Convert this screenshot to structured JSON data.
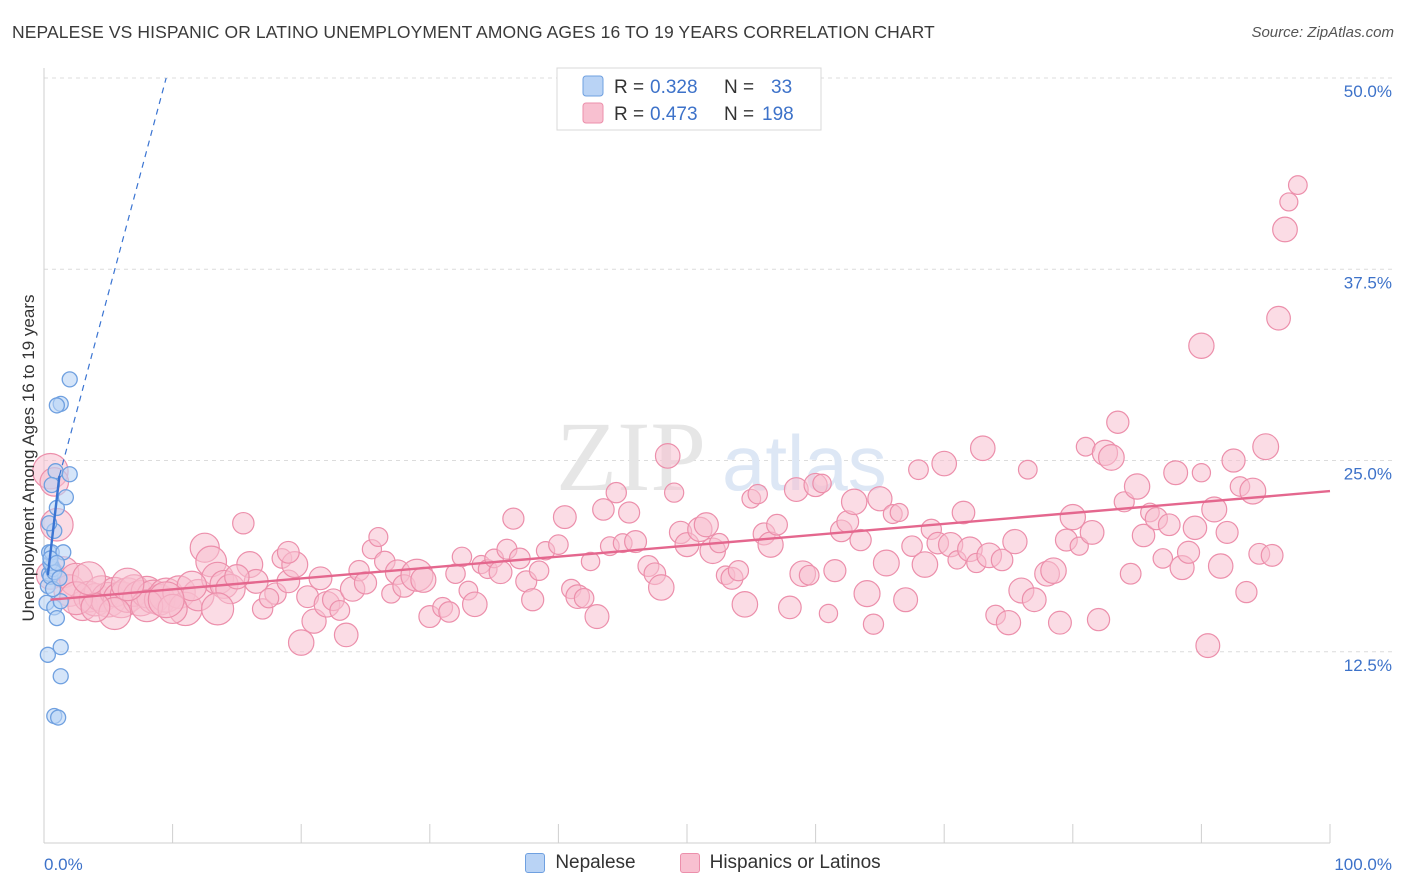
{
  "title": "NEPALESE VS HISPANIC OR LATINO UNEMPLOYMENT AMONG AGES 16 TO 19 YEARS CORRELATION CHART",
  "source": "Source: ZipAtlas.com",
  "watermark": {
    "zip": "ZIP",
    "atlas": "atlas"
  },
  "chart_data": {
    "type": "scatter",
    "xlabel": "",
    "ylabel": "Unemployment Among Ages 16 to 19 years",
    "xlim": [
      0,
      100
    ],
    "ylim": [
      0,
      52
    ],
    "x_tick_labels": [
      {
        "value": 0,
        "label": "0.0%"
      },
      {
        "value": 100,
        "label": "100.0%"
      }
    ],
    "y_ticks": [
      {
        "value": 12.5,
        "label": "12.5%"
      },
      {
        "value": 25,
        "label": "25.0%"
      },
      {
        "value": 37.5,
        "label": "37.5%"
      },
      {
        "value": 50,
        "label": "50.0%"
      }
    ],
    "legend": [
      {
        "series": "Nepalese",
        "r_label": "R =",
        "r": "0.328",
        "n_label": "N =",
        "n": "33"
      },
      {
        "series": "Hispanics or Latinos",
        "r_label": "R =",
        "r": "0.473",
        "n_label": "N =",
        "n": "198"
      }
    ],
    "colors": {
      "nepalese_fill": "#b9d3f5",
      "nepalese_stroke": "#6fa0e0",
      "nepalese_line": "#3a74d2",
      "hispanic_fill": "#f8c0d0",
      "hispanic_stroke": "#ec8fab",
      "hispanic_line": "#e4678e",
      "axis_value_text": "#3d72c9",
      "grid": "#dcdcdc"
    },
    "series": [
      {
        "name": "Nepalese",
        "trend_solid": [
          [
            0.3,
            17.5
          ],
          [
            1.2,
            24.0
          ]
        ],
        "trend_dashed": [
          [
            1.2,
            24.0
          ],
          [
            9.5,
            50.0
          ]
        ],
        "points": [
          [
            0.3,
            16.8
          ],
          [
            0.4,
            17.6
          ],
          [
            0.5,
            17.4
          ],
          [
            0.6,
            18.1
          ],
          [
            0.7,
            17.9
          ],
          [
            0.5,
            18.3
          ],
          [
            0.8,
            17.7
          ],
          [
            0.4,
            19.0
          ],
          [
            0.6,
            19.0
          ],
          [
            1.5,
            19.0
          ],
          [
            0.8,
            20.4
          ],
          [
            1.0,
            21.9
          ],
          [
            1.7,
            22.6
          ],
          [
            0.9,
            24.3
          ],
          [
            2.0,
            24.1
          ],
          [
            0.6,
            23.4
          ],
          [
            1.3,
            28.7
          ],
          [
            2.0,
            30.3
          ],
          [
            1.0,
            28.6
          ],
          [
            0.2,
            15.7
          ],
          [
            0.8,
            15.4
          ],
          [
            1.3,
            15.8
          ],
          [
            1.0,
            14.7
          ],
          [
            1.3,
            12.8
          ],
          [
            0.3,
            12.3
          ],
          [
            1.3,
            10.9
          ],
          [
            0.8,
            8.3
          ],
          [
            1.1,
            8.2
          ],
          [
            0.5,
            18.6
          ],
          [
            0.7,
            16.6
          ],
          [
            0.4,
            20.9
          ],
          [
            1.0,
            18.3
          ],
          [
            1.2,
            17.3
          ]
        ]
      },
      {
        "name": "Hispanics or Latinos",
        "trend_solid": [
          [
            0.5,
            15.9
          ],
          [
            100,
            23.0
          ]
        ],
        "points": [
          [
            0.5,
            17.5
          ],
          [
            0.5,
            24.3
          ],
          [
            0.8,
            23.6
          ],
          [
            1.0,
            20.8
          ],
          [
            1.5,
            17.7
          ],
          [
            2.0,
            16.5
          ],
          [
            2.5,
            17.2
          ],
          [
            3.0,
            15.5
          ],
          [
            3.5,
            16.1
          ],
          [
            4.0,
            15.9
          ],
          [
            4.5,
            16.3
          ],
          [
            5.0,
            15.9
          ],
          [
            5.5,
            16.4
          ],
          [
            6.0,
            15.9
          ],
          [
            6.5,
            16.2
          ],
          [
            7.0,
            16.5
          ],
          [
            7.5,
            16.0
          ],
          [
            8.0,
            16.4
          ],
          [
            8.5,
            16.1
          ],
          [
            9.0,
            15.9
          ],
          [
            9.5,
            16.2
          ],
          [
            10.5,
            16.4
          ],
          [
            11.0,
            15.3
          ],
          [
            12.0,
            16.2
          ],
          [
            12.5,
            19.3
          ],
          [
            13.0,
            18.4
          ],
          [
            13.5,
            17.3
          ],
          [
            14.0,
            16.9
          ],
          [
            14.5,
            16.6
          ],
          [
            15.5,
            20.9
          ],
          [
            16.0,
            18.2
          ],
          [
            16.5,
            17.1
          ],
          [
            17.0,
            15.3
          ],
          [
            18.0,
            16.3
          ],
          [
            18.5,
            18.6
          ],
          [
            19.0,
            17.1
          ],
          [
            19.5,
            18.2
          ],
          [
            20.0,
            13.1
          ],
          [
            20.5,
            16.1
          ],
          [
            21.0,
            14.5
          ],
          [
            21.5,
            17.3
          ],
          [
            22.0,
            15.6
          ],
          [
            22.5,
            15.9
          ],
          [
            23.0,
            15.2
          ],
          [
            23.5,
            13.6
          ],
          [
            24.0,
            16.6
          ],
          [
            24.5,
            17.8
          ],
          [
            25.0,
            17.0
          ],
          [
            25.5,
            19.2
          ],
          [
            26.0,
            20.0
          ],
          [
            26.5,
            18.4
          ],
          [
            27.0,
            16.3
          ],
          [
            27.5,
            17.7
          ],
          [
            28.0,
            16.8
          ],
          [
            29.0,
            17.5
          ],
          [
            29.5,
            17.2
          ],
          [
            30.0,
            14.8
          ],
          [
            31.0,
            15.4
          ],
          [
            31.5,
            15.1
          ],
          [
            32.0,
            17.6
          ],
          [
            32.5,
            18.7
          ],
          [
            33.0,
            16.5
          ],
          [
            33.5,
            15.6
          ],
          [
            34.0,
            18.2
          ],
          [
            34.5,
            17.9
          ],
          [
            35.0,
            18.6
          ],
          [
            35.5,
            17.7
          ],
          [
            36.0,
            19.2
          ],
          [
            36.5,
            21.2
          ],
          [
            37.0,
            18.6
          ],
          [
            37.5,
            17.1
          ],
          [
            38.0,
            15.9
          ],
          [
            38.5,
            17.8
          ],
          [
            39.0,
            19.1
          ],
          [
            40.0,
            19.5
          ],
          [
            40.5,
            21.3
          ],
          [
            41.0,
            16.6
          ],
          [
            41.5,
            16.1
          ],
          [
            42.0,
            16.0
          ],
          [
            42.5,
            18.4
          ],
          [
            43.0,
            14.8
          ],
          [
            43.5,
            21.8
          ],
          [
            44.0,
            19.4
          ],
          [
            44.5,
            22.9
          ],
          [
            45.0,
            19.6
          ],
          [
            45.5,
            21.6
          ],
          [
            46.0,
            19.7
          ],
          [
            47.0,
            18.1
          ],
          [
            47.5,
            17.6
          ],
          [
            48.0,
            16.7
          ],
          [
            48.5,
            25.3
          ],
          [
            49.0,
            22.9
          ],
          [
            49.5,
            20.3
          ],
          [
            50.0,
            19.5
          ],
          [
            51.0,
            20.5
          ],
          [
            51.5,
            20.8
          ],
          [
            52.0,
            19.1
          ],
          [
            52.5,
            19.6
          ],
          [
            53.0,
            17.5
          ],
          [
            53.5,
            17.3
          ],
          [
            54.0,
            17.8
          ],
          [
            54.5,
            15.6
          ],
          [
            55.0,
            22.5
          ],
          [
            55.5,
            22.8
          ],
          [
            56.0,
            20.2
          ],
          [
            56.5,
            19.5
          ],
          [
            57.0,
            20.8
          ],
          [
            58.0,
            15.4
          ],
          [
            58.5,
            23.1
          ],
          [
            59.0,
            17.6
          ],
          [
            59.5,
            17.5
          ],
          [
            60.0,
            23.4
          ],
          [
            60.5,
            23.5
          ],
          [
            61.0,
            15.0
          ],
          [
            61.5,
            17.8
          ],
          [
            62.0,
            20.4
          ],
          [
            62.5,
            21.0
          ],
          [
            63.0,
            22.3
          ],
          [
            63.5,
            19.8
          ],
          [
            64.0,
            16.3
          ],
          [
            64.5,
            14.3
          ],
          [
            65.0,
            22.5
          ],
          [
            65.5,
            18.3
          ],
          [
            66.0,
            21.5
          ],
          [
            66.5,
            21.6
          ],
          [
            67.0,
            15.9
          ],
          [
            67.5,
            19.4
          ],
          [
            68.0,
            24.4
          ],
          [
            68.5,
            18.2
          ],
          [
            69.0,
            20.5
          ],
          [
            69.5,
            19.6
          ],
          [
            70.0,
            24.8
          ],
          [
            70.5,
            19.5
          ],
          [
            71.0,
            18.5
          ],
          [
            71.5,
            21.6
          ],
          [
            72.0,
            19.2
          ],
          [
            72.5,
            18.3
          ],
          [
            73.0,
            25.8
          ],
          [
            73.5,
            18.8
          ],
          [
            74.0,
            14.9
          ],
          [
            74.5,
            18.5
          ],
          [
            75.0,
            14.4
          ],
          [
            75.5,
            19.7
          ],
          [
            76.0,
            16.5
          ],
          [
            76.5,
            24.4
          ],
          [
            77.0,
            15.9
          ],
          [
            78.0,
            17.6
          ],
          [
            78.5,
            17.8
          ],
          [
            79.0,
            14.4
          ],
          [
            79.5,
            19.8
          ],
          [
            80.0,
            21.3
          ],
          [
            80.5,
            19.4
          ],
          [
            81.0,
            25.9
          ],
          [
            81.5,
            20.3
          ],
          [
            82.0,
            14.6
          ],
          [
            82.5,
            25.5
          ],
          [
            83.0,
            25.2
          ],
          [
            83.5,
            27.5
          ],
          [
            84.0,
            22.3
          ],
          [
            84.5,
            17.6
          ],
          [
            85.0,
            23.3
          ],
          [
            85.5,
            20.1
          ],
          [
            86.0,
            21.6
          ],
          [
            86.5,
            21.2
          ],
          [
            87.0,
            18.6
          ],
          [
            87.5,
            20.8
          ],
          [
            88.0,
            24.2
          ],
          [
            88.5,
            18.0
          ],
          [
            89.0,
            19.0
          ],
          [
            89.5,
            20.6
          ],
          [
            90.0,
            24.2
          ],
          [
            90.5,
            12.9
          ],
          [
            91.0,
            21.8
          ],
          [
            91.5,
            18.1
          ],
          [
            92.0,
            20.3
          ],
          [
            92.5,
            25.0
          ],
          [
            93.0,
            23.3
          ],
          [
            93.5,
            16.4
          ],
          [
            94.0,
            23.0
          ],
          [
            94.5,
            18.9
          ],
          [
            95.0,
            25.9
          ],
          [
            95.5,
            18.8
          ],
          [
            96.0,
            34.3
          ],
          [
            96.5,
            40.1
          ],
          [
            96.8,
            41.9
          ],
          [
            97.5,
            43.0
          ],
          [
            90.0,
            32.5
          ],
          [
            5.5,
            15.0
          ],
          [
            8.0,
            15.5
          ],
          [
            10.0,
            15.3
          ],
          [
            2.5,
            16.0
          ],
          [
            11.5,
            16.8
          ],
          [
            6.5,
            16.9
          ],
          [
            4.0,
            15.4
          ],
          [
            9.5,
            15.9
          ],
          [
            3.5,
            17.3
          ],
          [
            13.5,
            15.3
          ],
          [
            15.0,
            17.4
          ],
          [
            17.5,
            16.0
          ],
          [
            19.0,
            19.0
          ]
        ]
      }
    ]
  }
}
